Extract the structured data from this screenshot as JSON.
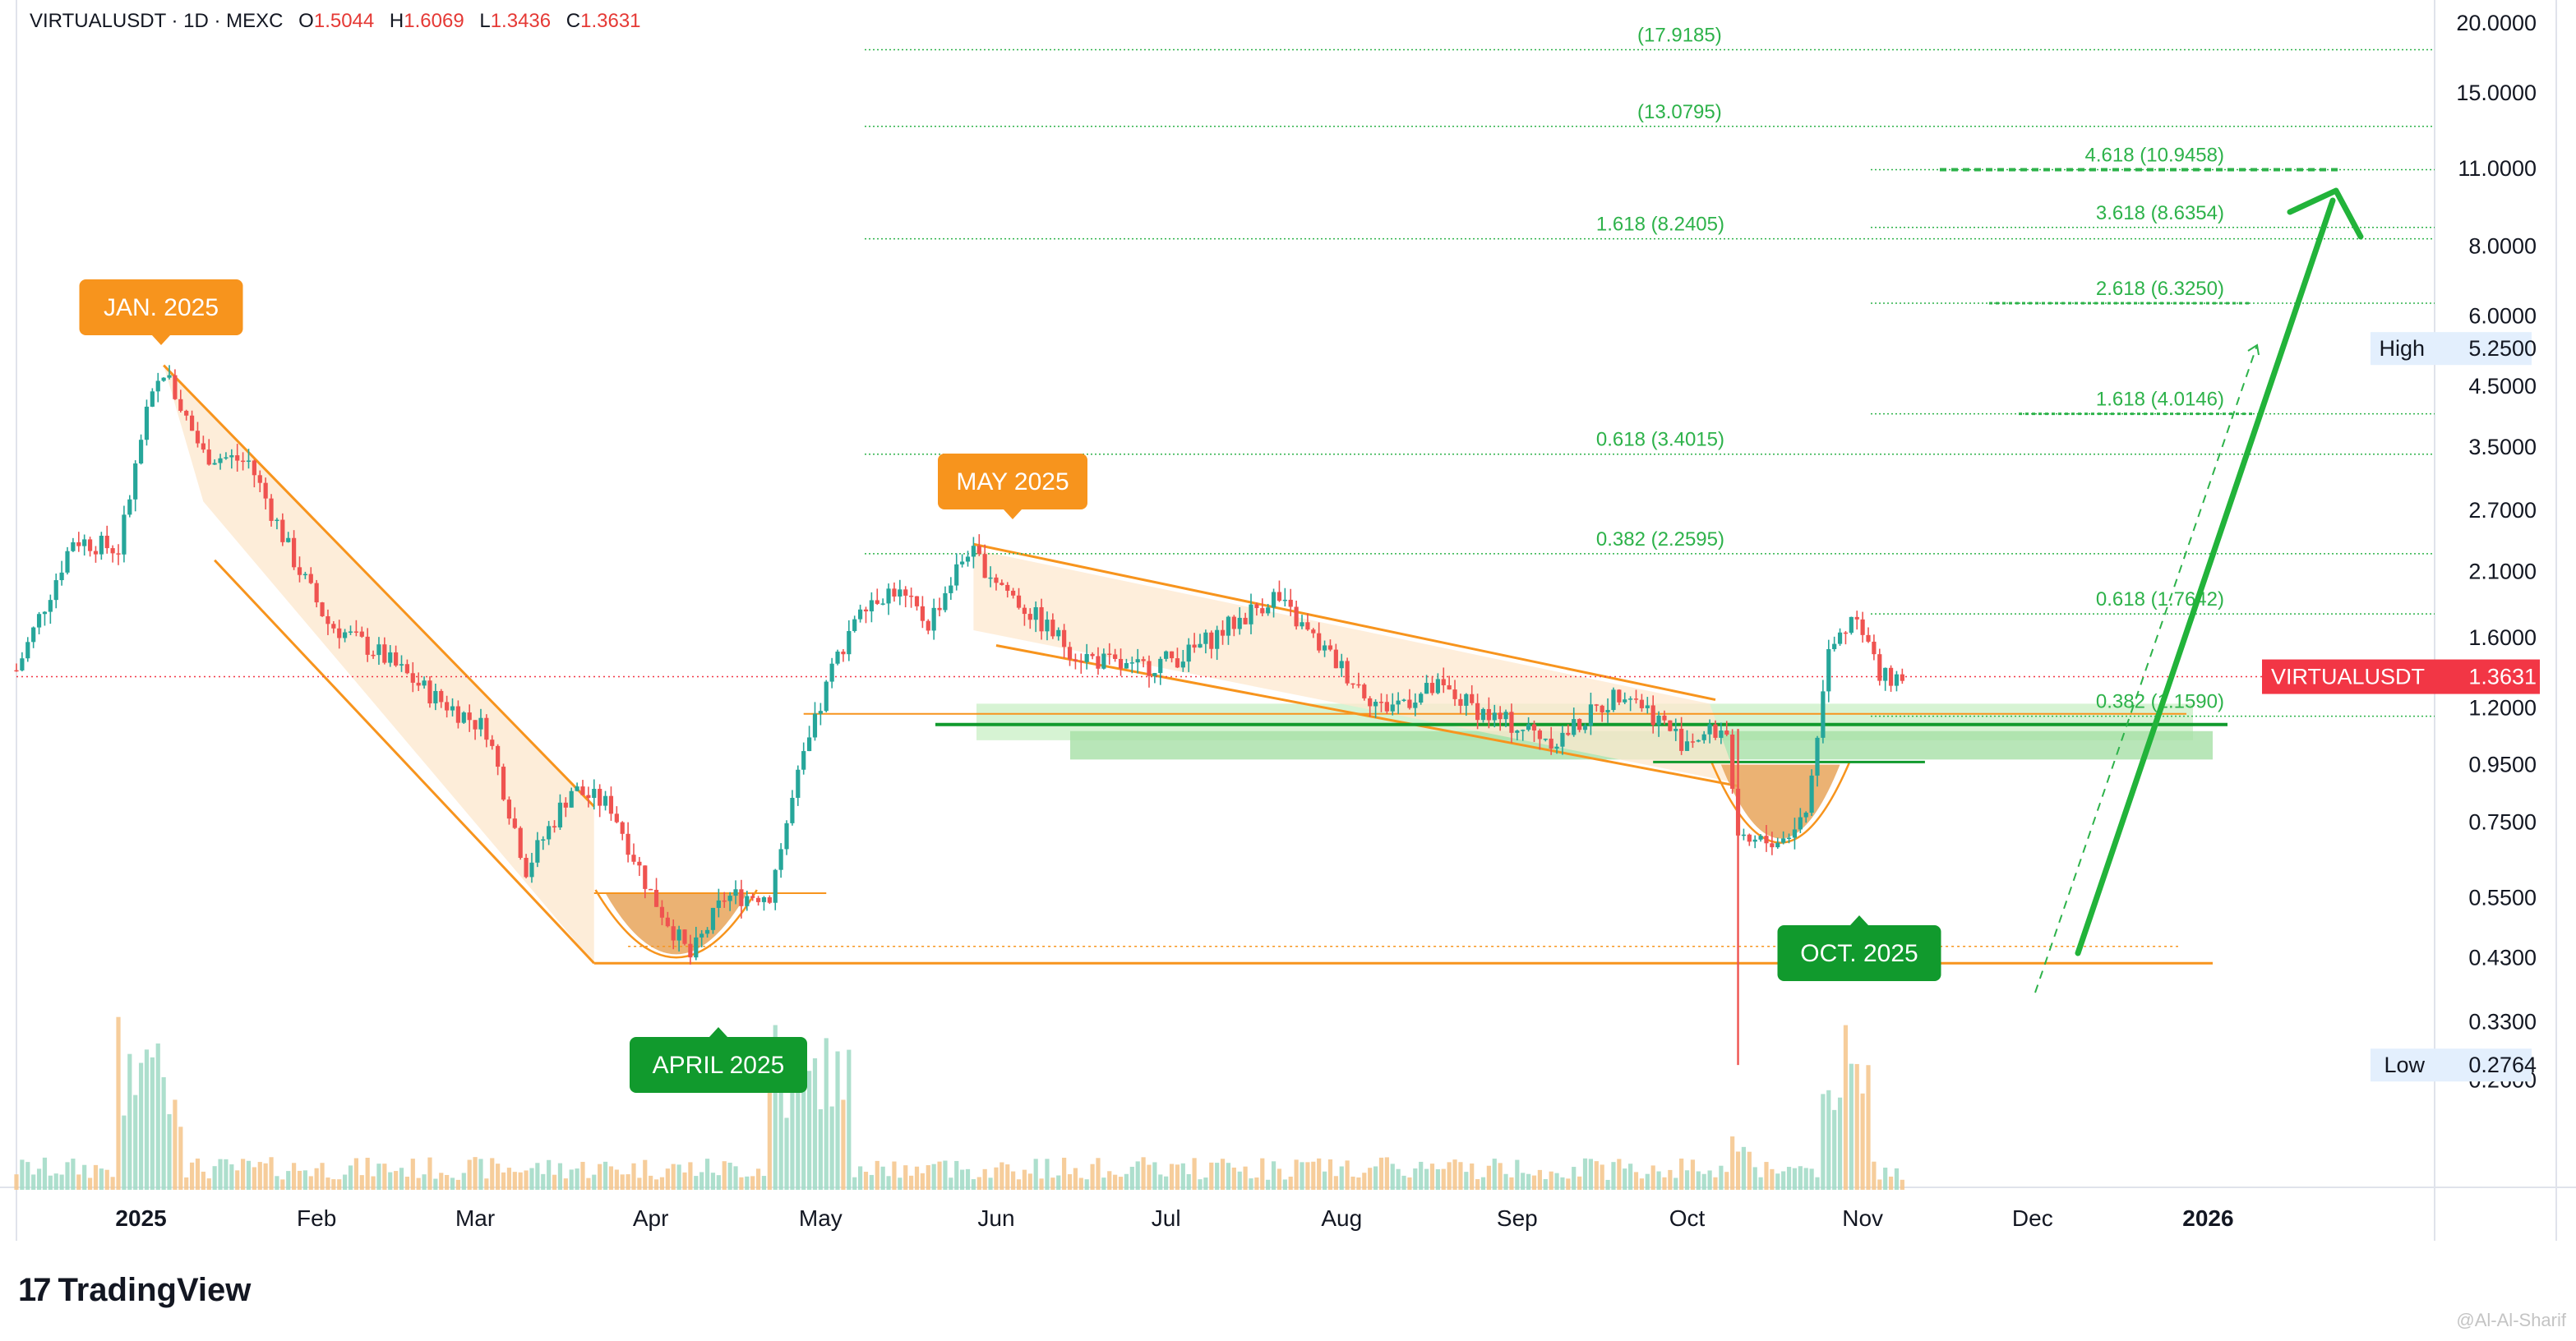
{
  "header": {
    "title": "VIRTUALUSDT · 1D · MEXC",
    "open_label": "O",
    "open": "1.5044",
    "high_label": "H",
    "high": "1.6069",
    "low_label": "L",
    "low": "1.3436",
    "close_label": "C",
    "close": "1.3631"
  },
  "brand": {
    "name": "TradingView"
  },
  "watermark": "@Al-Al-Sharif",
  "colors": {
    "up": "#26a69a",
    "down": "#ef5350",
    "channel": "#f7941d",
    "fib": "#2db24a",
    "support": "#119a2d",
    "label_orange": "#f7941d",
    "label_green": "#119a2d",
    "price_tag": "#f23645"
  },
  "chart_data": {
    "type": "candlestick",
    "symbol": "VIRTUALUSDT",
    "interval": "1D",
    "exchange": "MEXC",
    "y_scale": "log",
    "ylim": [
      0.2,
      20.0
    ],
    "xlim": [
      "2024-12-10",
      "2026-02-10"
    ],
    "y_ticks": [
      "20.0000",
      "15.0000",
      "11.0000",
      "8.0000",
      "6.0000",
      "4.5000",
      "3.5000",
      "2.7000",
      "2.1000",
      "1.6000",
      "1.2000",
      "0.9500",
      "0.7500",
      "0.5500",
      "0.4300",
      "0.3300",
      "0.2600"
    ],
    "x_ticks": [
      {
        "label": "2025",
        "date": "2025-01-01"
      },
      {
        "label": "Feb",
        "date": "2025-02-01"
      },
      {
        "label": "Mar",
        "date": "2025-03-01"
      },
      {
        "label": "Apr",
        "date": "2025-04-01"
      },
      {
        "label": "May",
        "date": "2025-05-01"
      },
      {
        "label": "Jun",
        "date": "2025-06-01"
      },
      {
        "label": "Jul",
        "date": "2025-07-01"
      },
      {
        "label": "Aug",
        "date": "2025-08-01"
      },
      {
        "label": "Sep",
        "date": "2025-09-01"
      },
      {
        "label": "Oct",
        "date": "2025-10-01"
      },
      {
        "label": "Nov",
        "date": "2025-11-01"
      },
      {
        "label": "Dec",
        "date": "2025-12-01"
      },
      {
        "label": "2026",
        "date": "2026-01-01"
      }
    ],
    "price_path": [
      {
        "date": "2024-12-10",
        "close": 1.4
      },
      {
        "date": "2024-12-20",
        "close": 2.4
      },
      {
        "date": "2024-12-28",
        "close": 2.3
      },
      {
        "date": "2025-01-02",
        "close": 4.0
      },
      {
        "date": "2025-01-05",
        "close": 4.8
      },
      {
        "date": "2025-01-12",
        "close": 3.4
      },
      {
        "date": "2025-01-20",
        "close": 3.3
      },
      {
        "date": "2025-01-28",
        "close": 2.2
      },
      {
        "date": "2025-02-03",
        "close": 1.7
      },
      {
        "date": "2025-02-12",
        "close": 1.5
      },
      {
        "date": "2025-02-22",
        "close": 1.25
      },
      {
        "date": "2025-03-03",
        "close": 1.1
      },
      {
        "date": "2025-03-10",
        "close": 0.62
      },
      {
        "date": "2025-03-18",
        "close": 0.86
      },
      {
        "date": "2025-03-25",
        "close": 0.8
      },
      {
        "date": "2025-04-01",
        "close": 0.56
      },
      {
        "date": "2025-04-08",
        "close": 0.43
      },
      {
        "date": "2025-04-14",
        "close": 0.55
      },
      {
        "date": "2025-04-22",
        "close": 0.56
      },
      {
        "date": "2025-04-27",
        "close": 0.9
      },
      {
        "date": "2025-05-03",
        "close": 1.4
      },
      {
        "date": "2025-05-08",
        "close": 1.85
      },
      {
        "date": "2025-05-14",
        "close": 1.95
      },
      {
        "date": "2025-05-20",
        "close": 1.7
      },
      {
        "date": "2025-05-27",
        "close": 2.3
      },
      {
        "date": "2025-06-05",
        "close": 1.85
      },
      {
        "date": "2025-06-15",
        "close": 1.5
      },
      {
        "date": "2025-06-25",
        "close": 1.4
      },
      {
        "date": "2025-07-05",
        "close": 1.5
      },
      {
        "date": "2025-07-20",
        "close": 1.9
      },
      {
        "date": "2025-07-28",
        "close": 1.55
      },
      {
        "date": "2025-08-08",
        "close": 1.2
      },
      {
        "date": "2025-08-18",
        "close": 1.3
      },
      {
        "date": "2025-08-28",
        "close": 1.15
      },
      {
        "date": "2025-09-08",
        "close": 1.05
      },
      {
        "date": "2025-09-20",
        "close": 1.3
      },
      {
        "date": "2025-09-30",
        "close": 1.05
      },
      {
        "date": "2025-10-08",
        "close": 1.1
      },
      {
        "date": "2025-10-10",
        "close": 0.68
      },
      {
        "date": "2025-10-18",
        "close": 0.7
      },
      {
        "date": "2025-10-22",
        "close": 0.78
      },
      {
        "date": "2025-10-26",
        "close": 1.5
      },
      {
        "date": "2025-10-31",
        "close": 1.8
      },
      {
        "date": "2025-11-04",
        "close": 1.35
      },
      {
        "date": "2025-11-08",
        "close": 1.3631
      }
    ],
    "wick_low": {
      "date": "2025-10-10",
      "low": 0.2764
    },
    "last_price": {
      "label": "VIRTUALUSDT",
      "value": "1.3631",
      "price": 1.3631
    },
    "high_marker": {
      "label": "High",
      "value": "5.2500",
      "price": 5.25
    },
    "low_marker": {
      "label": "Low",
      "value": "0.2764",
      "price": 0.2764
    },
    "fib_levels_long": [
      {
        "text": "(17.9185)",
        "price": 17.9185
      },
      {
        "text": "(13.0795)",
        "price": 13.0795
      },
      {
        "text": "1.618 (8.2405)",
        "price": 8.2405
      },
      {
        "text": "0.618 (3.4015)",
        "price": 3.4015
      },
      {
        "text": "0.382 (2.2595)",
        "price": 2.2595
      }
    ],
    "fib_levels_short": [
      {
        "text": "4.618 (10.9458)",
        "price": 10.9458
      },
      {
        "text": "3.618 (8.6354)",
        "price": 8.6354
      },
      {
        "text": "2.618 (6.3250)",
        "price": 6.325
      },
      {
        "text": "1.618 (4.0146)",
        "price": 4.0146
      },
      {
        "text": "0.618 (1.7642)",
        "price": 1.7642
      },
      {
        "text": "0.382 (1.1590)",
        "price": 1.159
      }
    ],
    "annotations": [
      {
        "text": "JAN. 2025",
        "style": "orange"
      },
      {
        "text": "MAY 2025",
        "style": "orange"
      },
      {
        "text": "APRIL 2025",
        "style": "green"
      },
      {
        "text": "OCT. 2025",
        "style": "green"
      }
    ],
    "support_level": 1.12,
    "base_level": 0.42,
    "projection_target": 10.9458,
    "grid": false,
    "volume_panel": true
  }
}
